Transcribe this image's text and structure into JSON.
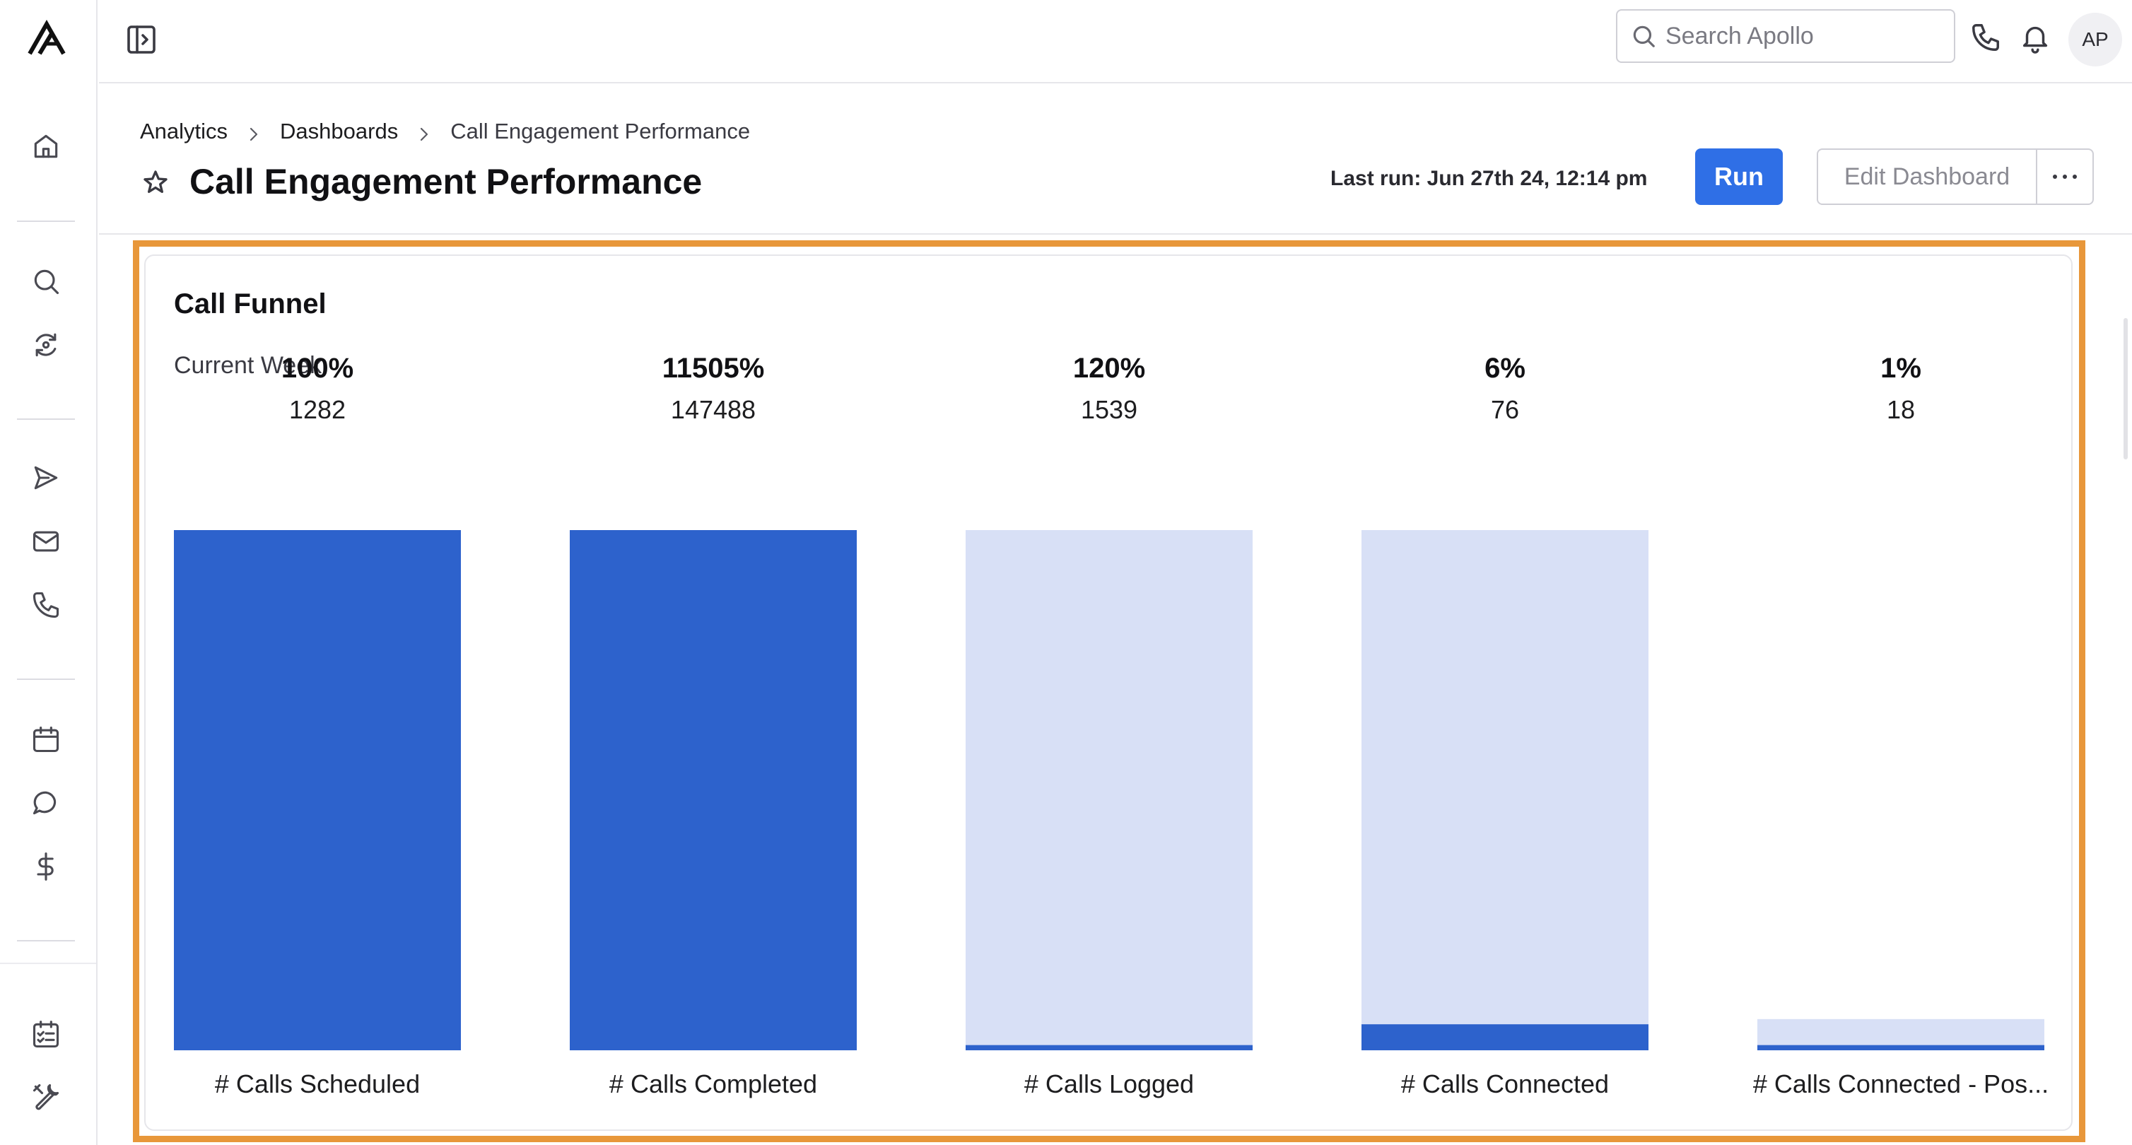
{
  "app": {
    "brand_color": "#2f6fe6",
    "highlight_color": "#e8973a"
  },
  "sidebar": {
    "logo_icon": "apollo-logo-icon",
    "items": [
      {
        "name": "home",
        "icon": "home-icon"
      },
      {
        "name": "search",
        "icon": "search-icon"
      },
      {
        "name": "refresh",
        "icon": "refresh-icon"
      },
      {
        "name": "sequences",
        "icon": "send-icon"
      },
      {
        "name": "emails",
        "icon": "mail-icon"
      },
      {
        "name": "calls",
        "icon": "phone-icon"
      },
      {
        "name": "meetings",
        "icon": "calendar-icon"
      },
      {
        "name": "conversations",
        "icon": "chat-icon"
      },
      {
        "name": "deals",
        "icon": "dollar-icon"
      },
      {
        "name": "tasks",
        "icon": "checklist-icon"
      },
      {
        "name": "settings",
        "icon": "tools-icon"
      }
    ]
  },
  "topbar": {
    "search_placeholder": "Search Apollo",
    "avatar_initials": "AP"
  },
  "header": {
    "breadcrumb": [
      "Analytics",
      "Dashboards",
      "Call Engagement Performance"
    ],
    "title": "Call Engagement Performance",
    "last_run": "Last run: Jun 27th 24, 12:14 pm",
    "run_label": "Run",
    "edit_label": "Edit Dashboard"
  },
  "card": {
    "title": "Call Funnel",
    "subtitle": "Current Week"
  },
  "chart_data": {
    "type": "bar",
    "title": "Call Funnel",
    "subtitle": "Current Week",
    "categories": [
      "# Calls Scheduled",
      "# Calls Completed",
      "# Calls Logged",
      "# Calls Connected",
      "# Calls Connected - Pos..."
    ],
    "values": [
      1282,
      147488,
      1539,
      76,
      18
    ],
    "percent_labels": [
      "100%",
      "11505%",
      "120%",
      "6%",
      "1%"
    ],
    "fill_fraction": [
      1.0,
      1.0,
      0.01,
      0.05,
      0.01
    ],
    "bar_colors": {
      "filled": "#2d62cc",
      "track": "#d8e0f6"
    },
    "track_present": [
      false,
      false,
      true,
      true,
      true
    ],
    "track_fraction": [
      1.0,
      1.0,
      1.0,
      1.0,
      0.06
    ]
  }
}
